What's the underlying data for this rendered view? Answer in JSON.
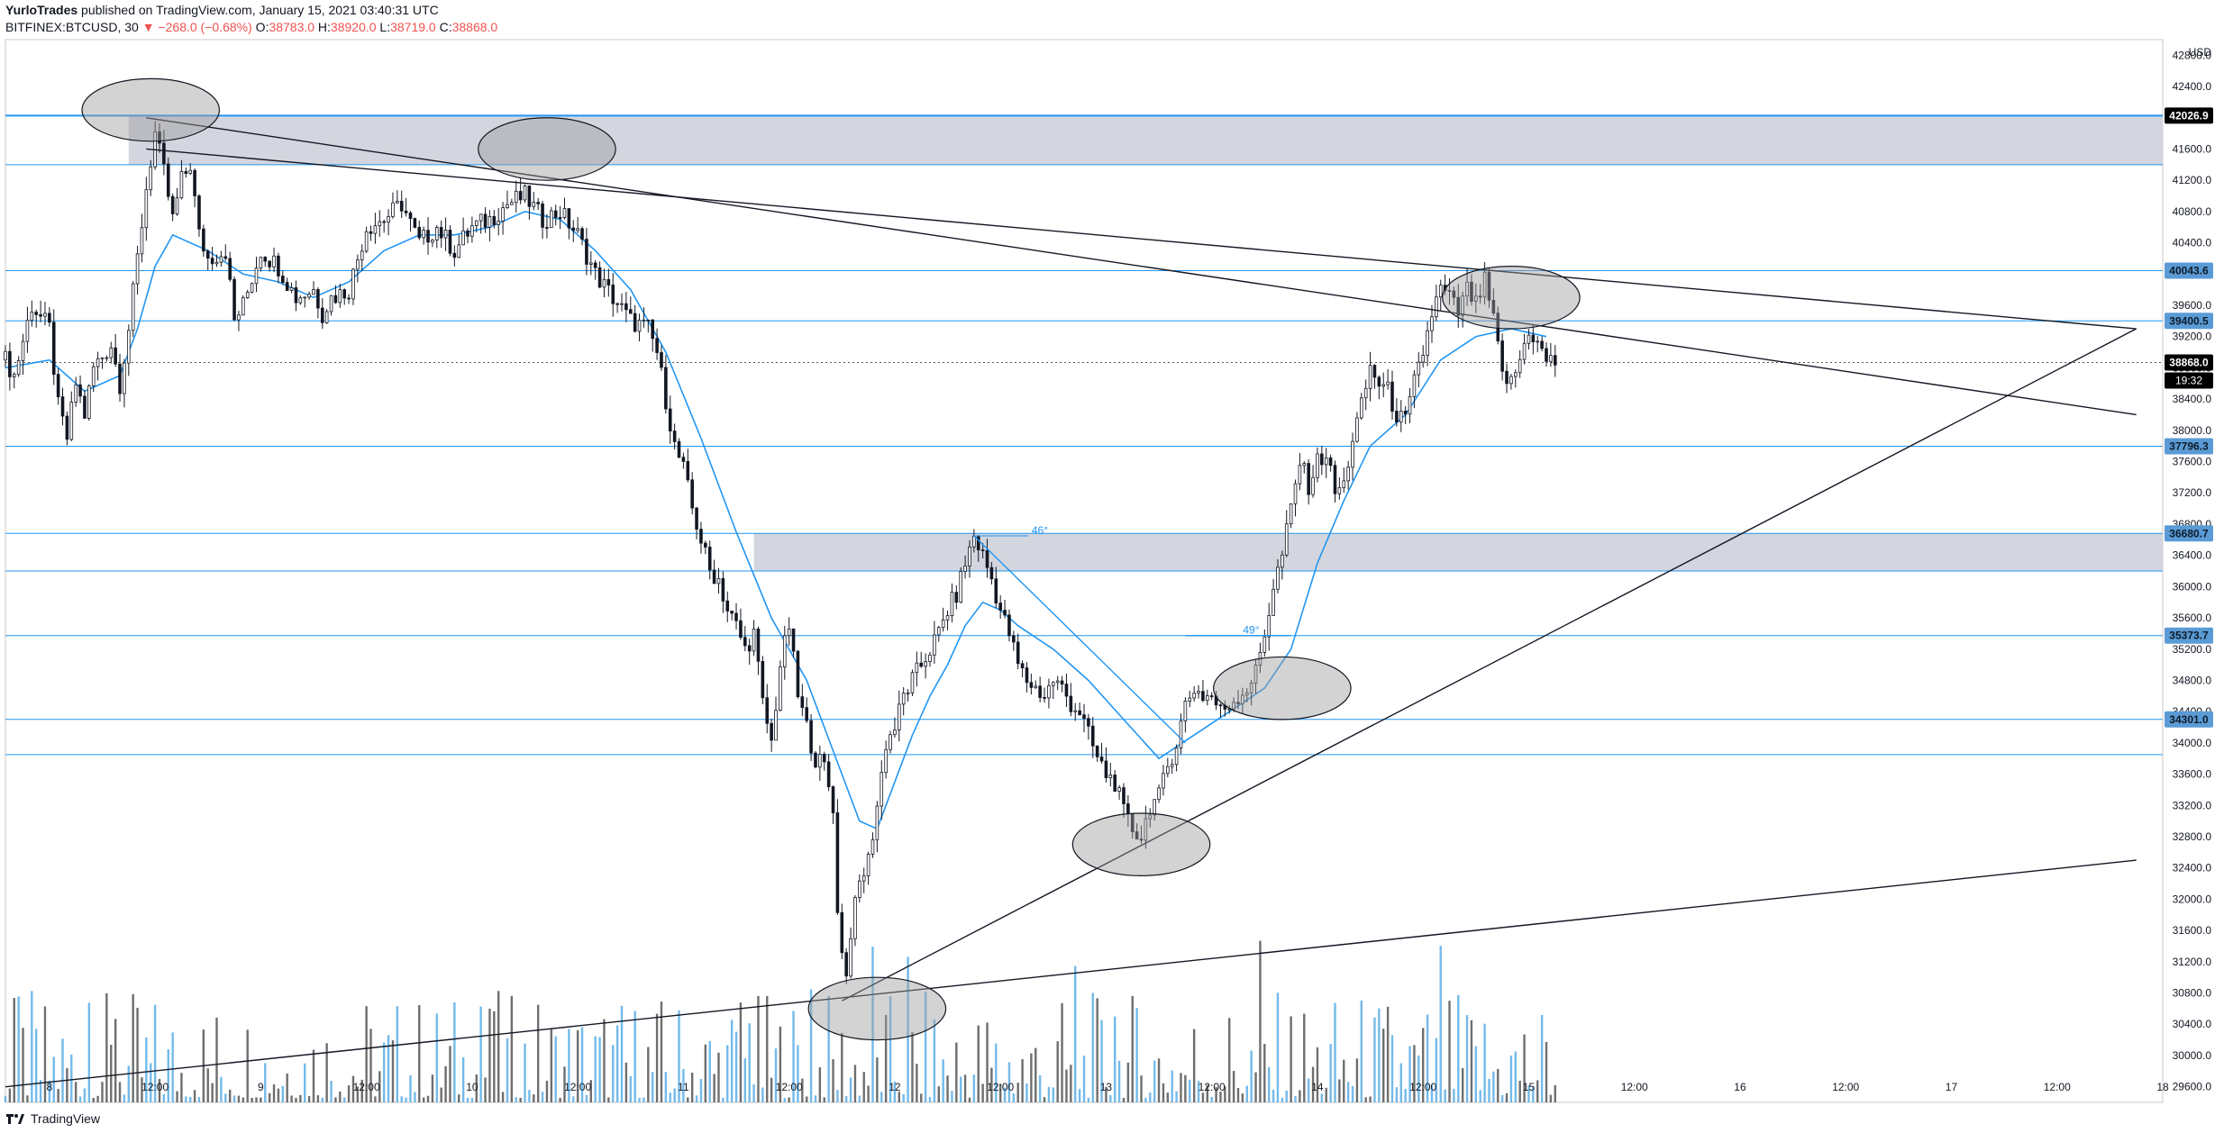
{
  "header": {
    "author": "YurloTrades",
    "published": "published on TradingView.com, January 15, 2021 03:40:31 UTC",
    "symbol": "BITFINEX:BTCUSD, 30",
    "change_arrow": "▼",
    "change": "−268.0 (−0.68%)",
    "o_label": "O:",
    "o_value": "38783.0",
    "h_label": "H:",
    "h_value": "38920.0",
    "l_label": "L:",
    "l_value": "38719.0",
    "c_label": "C:",
    "c_value": "38868.0"
  },
  "footer": {
    "brand": "TradingView"
  },
  "colors": {
    "candle": "#131722",
    "ema": "#2196f3",
    "hline": "#2196f3",
    "zone_fill": "#d1d4dc",
    "trendline": "#131722",
    "volume_up": "#5aaee6",
    "volume_down": "#555555",
    "badge_blue": "#5b9bd5",
    "badge_black": "#000000"
  },
  "chart_data": {
    "type": "candlestick",
    "symbol": "BITFINEX:BTCUSD",
    "interval": "30",
    "ylim": [
      29400,
      43000
    ],
    "y_ticks": [
      29600,
      30000,
      30400,
      30800,
      31200,
      31600,
      32000,
      32400,
      32800,
      33200,
      33600,
      34000,
      34400,
      34800,
      35200,
      35600,
      36000,
      36400,
      36800,
      37200,
      37600,
      38000,
      38400,
      38800,
      39200,
      39600,
      40000,
      40400,
      40800,
      41200,
      41600,
      42000,
      42400,
      42800
    ],
    "currency_label": "USD",
    "x_labels": [
      {
        "label": "8",
        "t": 0
      },
      {
        "label": "12:00",
        "t": 12
      },
      {
        "label": "9",
        "t": 24
      },
      {
        "label": "12:00",
        "t": 36
      },
      {
        "label": "10",
        "t": 48
      },
      {
        "label": "12:00",
        "t": 60
      },
      {
        "label": "11",
        "t": 72
      },
      {
        "label": "12:00",
        "t": 84
      },
      {
        "label": "12",
        "t": 96
      },
      {
        "label": "12:00",
        "t": 108
      },
      {
        "label": "13",
        "t": 120
      },
      {
        "label": "12:00",
        "t": 132
      },
      {
        "label": "14",
        "t": 144
      },
      {
        "label": "12:00",
        "t": 156
      },
      {
        "label": "15",
        "t": 168
      },
      {
        "label": "12:00",
        "t": 180
      },
      {
        "label": "16",
        "t": 192
      },
      {
        "label": "12:00",
        "t": 204
      },
      {
        "label": "17",
        "t": 216
      },
      {
        "label": "12:00",
        "t": 228
      },
      {
        "label": "18",
        "t": 240
      }
    ],
    "x_range_hours": [
      -5,
      240
    ],
    "last_bar_hours": 171,
    "price_path": [
      [
        -5,
        38900
      ],
      [
        -4,
        38700
      ],
      [
        -2,
        39600
      ],
      [
        0,
        39300
      ],
      [
        1,
        38300
      ],
      [
        2,
        37900
      ],
      [
        3,
        38600
      ],
      [
        4,
        38200
      ],
      [
        5,
        38800
      ],
      [
        7,
        39100
      ],
      [
        8,
        38600
      ],
      [
        9,
        39300
      ],
      [
        11,
        41100
      ],
      [
        12,
        41800
      ],
      [
        13,
        41300
      ],
      [
        14,
        40700
      ],
      [
        15,
        41200
      ],
      [
        16,
        41400
      ],
      [
        17,
        40500
      ],
      [
        18,
        40200
      ],
      [
        20,
        40300
      ],
      [
        21,
        39400
      ],
      [
        22,
        39600
      ],
      [
        24,
        40300
      ],
      [
        26,
        40100
      ],
      [
        28,
        39700
      ],
      [
        30,
        39800
      ],
      [
        31,
        39500
      ],
      [
        32,
        39700
      ],
      [
        34,
        39800
      ],
      [
        36,
        40600
      ],
      [
        38,
        40700
      ],
      [
        40,
        40900
      ],
      [
        42,
        40400
      ],
      [
        44,
        40600
      ],
      [
        46,
        40300
      ],
      [
        48,
        40600
      ],
      [
        50,
        40700
      ],
      [
        52,
        40900
      ],
      [
        54,
        41000
      ],
      [
        56,
        40700
      ],
      [
        58,
        40800
      ],
      [
        60,
        40500
      ],
      [
        62,
        40000
      ],
      [
        64,
        39700
      ],
      [
        66,
        39400
      ],
      [
        68,
        39300
      ],
      [
        69,
        39000
      ],
      [
        70,
        38400
      ],
      [
        71,
        37800
      ],
      [
        72,
        37500
      ],
      [
        73,
        37000
      ],
      [
        74,
        36600
      ],
      [
        75,
        36200
      ],
      [
        76,
        36100
      ],
      [
        77,
        35700
      ],
      [
        78,
        35500
      ],
      [
        79,
        35200
      ],
      [
        80,
        35400
      ],
      [
        81,
        34500
      ],
      [
        82,
        34000
      ],
      [
        83,
        35000
      ],
      [
        84,
        35500
      ],
      [
        85,
        34600
      ],
      [
        86,
        34200
      ],
      [
        87,
        33800
      ],
      [
        88,
        33700
      ],
      [
        89,
        33200
      ],
      [
        89.5,
        31800
      ],
      [
        90,
        31400
      ],
      [
        90.5,
        31000
      ],
      [
        91,
        31600
      ],
      [
        92,
        32200
      ],
      [
        93,
        32500
      ],
      [
        94,
        33200
      ],
      [
        95,
        34000
      ],
      [
        96,
        34200
      ],
      [
        97,
        34600
      ],
      [
        98,
        34800
      ],
      [
        99,
        35000
      ],
      [
        100,
        35200
      ],
      [
        101,
        35400
      ],
      [
        102,
        35700
      ],
      [
        103,
        35900
      ],
      [
        104,
        36300
      ],
      [
        105,
        36650
      ],
      [
        106,
        36400
      ],
      [
        107,
        36100
      ],
      [
        108,
        35700
      ],
      [
        109,
        35400
      ],
      [
        110,
        35000
      ],
      [
        111,
        34800
      ],
      [
        112,
        34700
      ],
      [
        113,
        34600
      ],
      [
        114,
        34800
      ],
      [
        115,
        34700
      ],
      [
        116,
        34500
      ],
      [
        117,
        34400
      ],
      [
        118,
        34100
      ],
      [
        119,
        33800
      ],
      [
        120,
        33600
      ],
      [
        121,
        33500
      ],
      [
        122,
        33100
      ],
      [
        123,
        32900
      ],
      [
        124,
        32800
      ],
      [
        125,
        33200
      ],
      [
        126,
        33300
      ],
      [
        127,
        33700
      ],
      [
        128,
        34000
      ],
      [
        129,
        34500
      ],
      [
        130,
        34700
      ],
      [
        131,
        34600
      ],
      [
        132,
        34600
      ],
      [
        133,
        34400
      ],
      [
        134,
        34500
      ],
      [
        135,
        34600
      ],
      [
        136,
        34700
      ],
      [
        137,
        34900
      ],
      [
        138,
        35400
      ],
      [
        139,
        36000
      ],
      [
        140,
        36400
      ],
      [
        141,
        37000
      ],
      [
        142,
        37600
      ],
      [
        143,
        37300
      ],
      [
        144,
        37600
      ],
      [
        145,
        37700
      ],
      [
        146,
        37200
      ],
      [
        147,
        37300
      ],
      [
        148,
        37900
      ],
      [
        149,
        38300
      ],
      [
        150,
        38800
      ],
      [
        151,
        38600
      ],
      [
        152,
        38500
      ],
      [
        153,
        38200
      ],
      [
        154,
        38100
      ],
      [
        155,
        38600
      ],
      [
        156,
        39000
      ],
      [
        157,
        39500
      ],
      [
        158,
        39800
      ],
      [
        159,
        39700
      ],
      [
        160,
        39500
      ],
      [
        161,
        39800
      ],
      [
        162,
        39600
      ],
      [
        163,
        39900
      ],
      [
        164,
        39400
      ],
      [
        165,
        38700
      ],
      [
        166,
        38600
      ],
      [
        167,
        38900
      ],
      [
        168,
        39300
      ],
      [
        169,
        39100
      ],
      [
        170,
        38900
      ],
      [
        171,
        38868
      ]
    ],
    "ema_path": [
      [
        -5,
        38800
      ],
      [
        0,
        38900
      ],
      [
        4,
        38500
      ],
      [
        8,
        38700
      ],
      [
        10,
        39300
      ],
      [
        12,
        40100
      ],
      [
        14,
        40500
      ],
      [
        18,
        40300
      ],
      [
        22,
        40000
      ],
      [
        26,
        39900
      ],
      [
        30,
        39700
      ],
      [
        34,
        39900
      ],
      [
        38,
        40300
      ],
      [
        42,
        40500
      ],
      [
        46,
        40500
      ],
      [
        50,
        40600
      ],
      [
        54,
        40800
      ],
      [
        58,
        40700
      ],
      [
        62,
        40300
      ],
      [
        66,
        39800
      ],
      [
        70,
        39000
      ],
      [
        74,
        37900
      ],
      [
        78,
        36700
      ],
      [
        82,
        35600
      ],
      [
        86,
        34800
      ],
      [
        90,
        33600
      ],
      [
        92,
        33000
      ],
      [
        94,
        32900
      ],
      [
        96,
        33500
      ],
      [
        98,
        34100
      ],
      [
        100,
        34600
      ],
      [
        102,
        35000
      ],
      [
        104,
        35500
      ],
      [
        106,
        35800
      ],
      [
        108,
        35700
      ],
      [
        110,
        35500
      ],
      [
        114,
        35200
      ],
      [
        118,
        34800
      ],
      [
        122,
        34300
      ],
      [
        126,
        33800
      ],
      [
        130,
        34100
      ],
      [
        134,
        34400
      ],
      [
        138,
        34700
      ],
      [
        141,
        35200
      ],
      [
        144,
        36300
      ],
      [
        147,
        37100
      ],
      [
        150,
        37800
      ],
      [
        154,
        38200
      ],
      [
        158,
        38900
      ],
      [
        162,
        39200
      ],
      [
        166,
        39300
      ],
      [
        170,
        39200
      ]
    ],
    "horizontal_levels": [
      {
        "price": 42026.9,
        "label": "42026.9",
        "badge": "black"
      },
      {
        "price": 41400,
        "label": ""
      },
      {
        "price": 40043.6,
        "label": "40043.6",
        "badge": "blue"
      },
      {
        "price": 39400.5,
        "label": "39400.5",
        "badge": "blue"
      },
      {
        "price": 38868.0,
        "label": "38868.0",
        "badge": "black",
        "dotted": true
      },
      {
        "price": 37796.3,
        "label": "37796.3",
        "badge": "blue"
      },
      {
        "price": 36680.7,
        "label": "36680.7",
        "badge": "blue"
      },
      {
        "price": 36200,
        "label": ""
      },
      {
        "price": 35373.7,
        "label": "35373.7",
        "badge": "blue"
      },
      {
        "price": 34301.0,
        "label": "34301.0",
        "badge": "blue"
      },
      {
        "price": 33850,
        "label": ""
      }
    ],
    "countdown_badge": "19:32",
    "zones": [
      {
        "from": 41400,
        "to": 42026.9,
        "t_start": 9
      },
      {
        "from": 36200,
        "to": 36680.7,
        "t_start": 80
      }
    ],
    "trendlines": [
      {
        "t1": 11,
        "p1": 42000,
        "t2": 237,
        "p2": 38200
      },
      {
        "t1": 11,
        "p1": 41600,
        "t2": 237,
        "p2": 39300
      },
      {
        "t1": -5,
        "p1": 29600,
        "t2": 237,
        "p2": 32500
      },
      {
        "t1": 90,
        "p1": 30700,
        "t2": 237,
        "p2": 39300
      }
    ],
    "angle_markers": [
      {
        "t1": 105,
        "p1": 36650,
        "t2": 129,
        "p2": 34000,
        "label": "46°"
      },
      {
        "t1": 129,
        "p1": 35373.7,
        "t2": 141,
        "p2": 35373.7,
        "label": "49°"
      }
    ],
    "ellipses": [
      {
        "t": 11.5,
        "p": 42100,
        "rt": 7.8,
        "rp": 400
      },
      {
        "t": 56.5,
        "p": 41600,
        "rt": 7.8,
        "rp": 400
      },
      {
        "t": 166,
        "p": 39700,
        "rt": 7.8,
        "rp": 400
      },
      {
        "t": 140,
        "p": 34700,
        "rt": 7.8,
        "rp": 400
      },
      {
        "t": 124,
        "p": 32700,
        "rt": 7.8,
        "rp": 400
      },
      {
        "t": 94,
        "p": 30600,
        "rt": 7.8,
        "rp": 400
      }
    ]
  }
}
